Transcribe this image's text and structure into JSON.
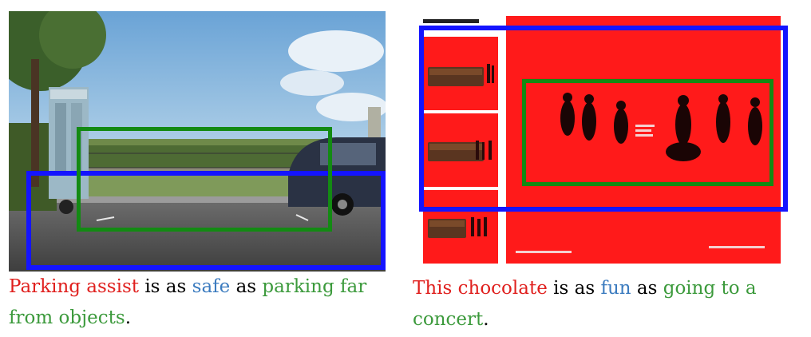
{
  "colors": {
    "subject": "#e0201e",
    "relation": "#3b7bbf",
    "object": "#3c9a3c",
    "box_blue": "#1414ff",
    "box_green": "#138a13",
    "ad_red": "#ff1a1a"
  },
  "left_panel": {
    "caption": {
      "subject": "Parking assist",
      "is_as": "is as",
      "relation": "safe",
      "as": "as",
      "object": "parking far from objects",
      "period": "."
    }
  },
  "right_panel": {
    "caption": {
      "subject": "This chocolate",
      "is_as": "is as",
      "relation": "fun",
      "as": "as",
      "object": "going to a concert",
      "period": "."
    }
  }
}
